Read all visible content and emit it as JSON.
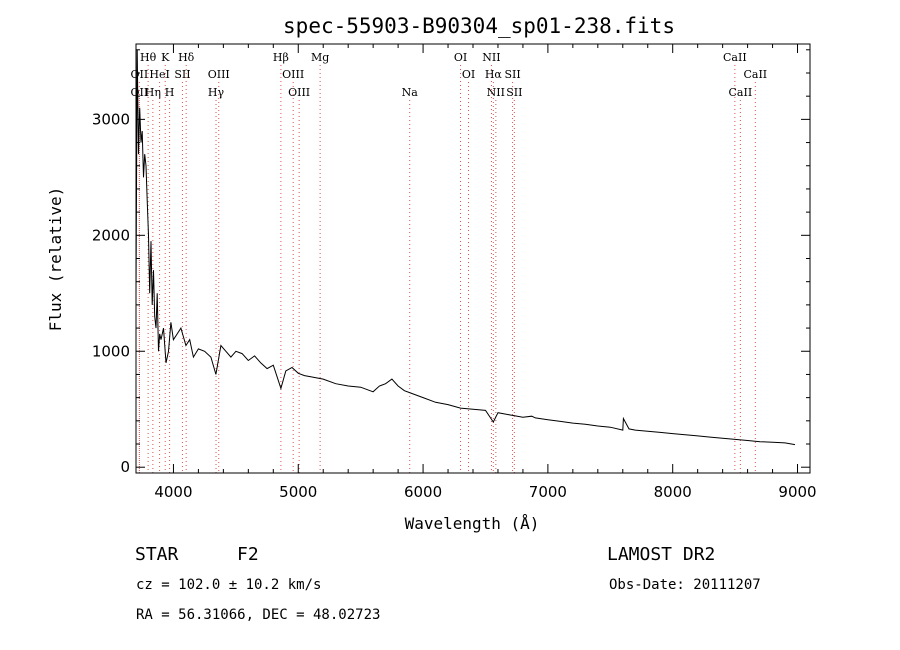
{
  "chart_data": {
    "type": "line",
    "title": "spec-55903-B90304_sp01-238.fits",
    "xlabel": "Wavelength (Å)",
    "ylabel": "Flux (relative)",
    "xlim": [
      3700,
      9100
    ],
    "ylim": [
      -50,
      3650
    ],
    "xticks": [
      4000,
      5000,
      6000,
      7000,
      8000,
      9000
    ],
    "yticks": [
      0,
      1000,
      2000,
      3000
    ],
    "grid": false,
    "series": [
      {
        "x": [
          3700,
          3710,
          3720,
          3730,
          3740,
          3750,
          3760,
          3770,
          3780,
          3790,
          3800,
          3810,
          3820,
          3830,
          3840,
          3850,
          3860,
          3870,
          3880,
          3890,
          3900,
          3920,
          3940,
          3960,
          3980,
          4000,
          4030,
          4060,
          4100,
          4130,
          4160,
          4200,
          4250,
          4300,
          4340,
          4380,
          4420,
          4460,
          4500,
          4550,
          4600,
          4650,
          4700,
          4750,
          4800,
          4861,
          4900,
          4950,
          5000,
          5050,
          5100,
          5200,
          5300,
          5400,
          5500,
          5600,
          5650,
          5700,
          5750,
          5800,
          5850,
          5900,
          6000,
          6100,
          6200,
          6300,
          6400,
          6500,
          6563,
          6600,
          6700,
          6800,
          6870,
          6900,
          7000,
          7100,
          7200,
          7300,
          7400,
          7500,
          7600,
          7605,
          7650,
          7700,
          7800,
          7900,
          8000,
          8100,
          8200,
          8300,
          8400,
          8500,
          8600,
          8700,
          8800,
          8900,
          8980
        ],
        "y": [
          1500,
          3600,
          2700,
          3100,
          2800,
          2900,
          2500,
          2700,
          2600,
          2300,
          2000,
          1500,
          1950,
          1400,
          1700,
          1300,
          1200,
          1500,
          1000,
          1150,
          1100,
          1200,
          900,
          1000,
          1250,
          1100,
          1150,
          1200,
          1050,
          1100,
          950,
          1020,
          1000,
          950,
          800,
          1050,
          1000,
          950,
          1000,
          980,
          920,
          960,
          900,
          850,
          880,
          680,
          830,
          860,
          810,
          790,
          780,
          760,
          720,
          700,
          690,
          650,
          700,
          720,
          760,
          700,
          660,
          640,
          600,
          560,
          540,
          510,
          500,
          490,
          390,
          470,
          450,
          430,
          440,
          425,
          410,
          395,
          380,
          370,
          355,
          345,
          320,
          420,
          330,
          320,
          310,
          300,
          290,
          280,
          270,
          260,
          250,
          240,
          230,
          220,
          215,
          210,
          195
        ]
      }
    ],
    "lines_top": [
      {
        "label": "Hθ",
        "x": 3797
      },
      {
        "label": "K",
        "x": 3934
      },
      {
        "label": "Hδ",
        "x": 4102
      },
      {
        "label": "Hβ",
        "x": 4861
      },
      {
        "label": "Mg",
        "x": 5175
      },
      {
        "label": "OI",
        "x": 6300
      },
      {
        "label": "NII",
        "x": 6548
      },
      {
        "label": "CaII",
        "x": 8498
      }
    ],
    "lines_mid": [
      {
        "label": "OII",
        "x": 3727
      },
      {
        "label": "HeI",
        "x": 3889
      },
      {
        "label": "SII",
        "x": 4072
      },
      {
        "label": "OIII",
        "x": 4363
      },
      {
        "label": "OIII",
        "x": 4959
      },
      {
        "label": "OI",
        "x": 6364
      },
      {
        "label": "Hα",
        "x": 6563
      },
      {
        "label": "SII",
        "x": 6717
      },
      {
        "label": "CaII",
        "x": 8662
      }
    ],
    "lines_low": [
      {
        "label": "OII",
        "x": 3727
      },
      {
        "label": "Hη",
        "x": 3835
      },
      {
        "label": "H",
        "x": 3969
      },
      {
        "label": "Hγ",
        "x": 4341
      },
      {
        "label": "OIII",
        "x": 5007
      },
      {
        "label": "Na",
        "x": 5893
      },
      {
        "label": "NII",
        "x": 6583
      },
      {
        "label": "SII",
        "x": 6731
      },
      {
        "label": "CaII",
        "x": 8542
      }
    ]
  },
  "info": {
    "class": "STAR",
    "subclass": "F2",
    "survey": "LAMOST DR2",
    "cz": "cz = 102.0 ± 10.2 km/s",
    "obs_date": "Obs-Date: 20111207",
    "radec": "RA =  56.31066, DEC =  48.02723"
  }
}
